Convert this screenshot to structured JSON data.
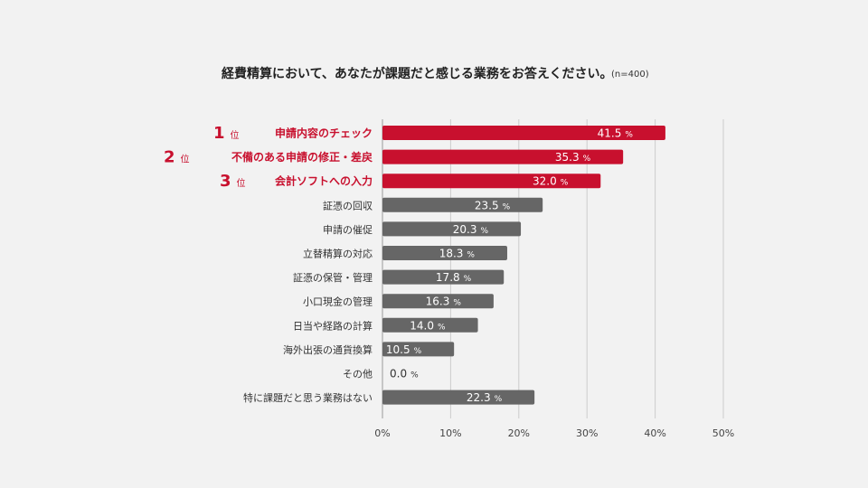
{
  "chart_data": {
    "type": "bar",
    "orientation": "horizontal",
    "title": "経費精算において、あなたが課題だと感じる業務をお答えください。",
    "subtitle": "(n=400)",
    "categories": [
      "申請内容のチェック",
      "不備のある申請の修正・差戻",
      "会計ソフトへの入力",
      "証憑の回収",
      "申請の催促",
      "立替精算の対応",
      "証憑の保管・管理",
      "小口現金の管理",
      "日当や経路の計算",
      "海外出張の通貨換算",
      "その他",
      "特に課題だと思う業務はない"
    ],
    "values": [
      41.5,
      35.3,
      32.0,
      23.5,
      20.3,
      18.3,
      17.8,
      16.3,
      14.0,
      10.5,
      0.0,
      22.3
    ],
    "value_labels": [
      "41.5",
      "35.3",
      "32.0",
      "23.5",
      "20.3",
      "18.3",
      "17.8",
      "16.3",
      "14.0",
      "10.5",
      "0.0",
      "22.3"
    ],
    "value_unit": "%",
    "highlighted": [
      true,
      true,
      true,
      false,
      false,
      false,
      false,
      false,
      false,
      false,
      false,
      false
    ],
    "rank_numbers": [
      "1",
      "2",
      "3"
    ],
    "rank_suffix": "位",
    "xlim": [
      0,
      50
    ],
    "xticks": [
      0,
      10,
      20,
      30,
      40,
      50
    ],
    "xtick_labels": [
      "0%",
      "10%",
      "20%",
      "30%",
      "40%",
      "50%"
    ],
    "grid": true,
    "colors": {
      "highlight": "#c8102e",
      "normal": "#666666",
      "grid": "#cccccc",
      "background": "#f2f2f2",
      "label": "#333333",
      "highlight_label": "#c8102e"
    }
  }
}
